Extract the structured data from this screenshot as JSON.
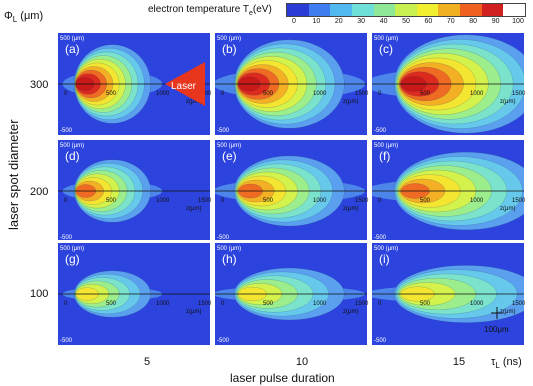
{
  "chart_data": {
    "type": "heatmap",
    "colorbar": {
      "title": "electron temperature T",
      "title_sub": "e",
      "title_unit": "(eV)",
      "ticks": [
        "0",
        "10",
        "20",
        "30",
        "40",
        "50",
        "60",
        "70",
        "80",
        "90",
        "100"
      ],
      "colors": [
        "#2b3bd6",
        "#3f7cf0",
        "#52b8f0",
        "#6fe0d8",
        "#8fe898",
        "#c8f050",
        "#f0f030",
        "#f0b020",
        "#f06020",
        "#d02020",
        "#ffffff"
      ]
    },
    "y_axis": {
      "title": "laser spot diameter",
      "phi_label": "Φ",
      "phi_sub": "L",
      "phi_unit": "(μm)",
      "ticks": [
        "300",
        "200",
        "100"
      ],
      "values": [
        300,
        200,
        100
      ]
    },
    "x_axis": {
      "title": "laser pulse duration",
      "tau_label": "τ",
      "tau_sub": "L",
      "tau_unit": "(ns)",
      "ticks": [
        "5",
        "10",
        "15"
      ],
      "values": [
        5,
        10,
        15
      ]
    },
    "panels": [
      {
        "label": "(a)",
        "diameter": 300,
        "duration": 5
      },
      {
        "label": "(b)",
        "diameter": 300,
        "duration": 10
      },
      {
        "label": "(c)",
        "diameter": 300,
        "duration": 15
      },
      {
        "label": "(d)",
        "diameter": 200,
        "duration": 5
      },
      {
        "label": "(e)",
        "diameter": 200,
        "duration": 10
      },
      {
        "label": "(f)",
        "diameter": 200,
        "duration": 15
      },
      {
        "label": "(g)",
        "diameter": 100,
        "duration": 5
      },
      {
        "label": "(h)",
        "diameter": 100,
        "duration": 10
      },
      {
        "label": "(i)",
        "diameter": 100,
        "duration": 15
      }
    ],
    "panel_axis_ticks": {
      "z_ticks": [
        "0",
        "500",
        "1000",
        "1500"
      ],
      "z_label": "z(μm)",
      "r_top": "500 (μm)",
      "r_bottom": "-500",
      "r_label": "r"
    },
    "annotations": {
      "laser_label": "Laser",
      "scale_label": "100μm"
    }
  }
}
